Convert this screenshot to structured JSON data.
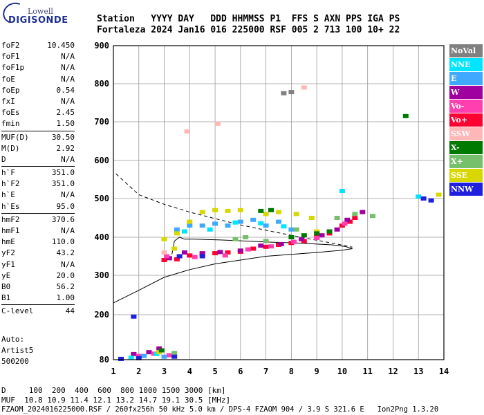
{
  "logo": {
    "lowell": "Lowell",
    "digisonde": "DIGISONDE"
  },
  "header": {
    "row1": "Station   YYYY DAY   DDD HHMMSS P1  FFS S AXN PPS IGA PS",
    "row2": "Fortaleza 2024 Jan16 016 225000 RSF 005 2 713 100 10+ 22"
  },
  "params": [
    {
      "name": "foF2",
      "value": "10.450"
    },
    {
      "name": "foF1",
      "value": "N/A"
    },
    {
      "name": "foF1p",
      "value": "N/A"
    },
    {
      "name": "foE",
      "value": "N/A"
    },
    {
      "name": "foEp",
      "value": "0.54"
    },
    {
      "name": "fxI",
      "value": "N/A"
    },
    {
      "name": "foEs",
      "value": "2.45"
    },
    {
      "name": "fmin",
      "value": "1.50"
    },
    {
      "sep": true
    },
    {
      "name": "MUF(D)",
      "value": "30.50"
    },
    {
      "name": "M(D)",
      "value": "2.92"
    },
    {
      "name": "D",
      "value": "N/A"
    },
    {
      "sep": true
    },
    {
      "name": "h`F",
      "value": "351.0"
    },
    {
      "name": "h`F2",
      "value": "351.0"
    },
    {
      "name": "h`E",
      "value": "N/A"
    },
    {
      "name": "h`Es",
      "value": "95.0"
    },
    {
      "sep": true
    },
    {
      "name": "hmF2",
      "value": "370.6"
    },
    {
      "name": "hmF1",
      "value": "N/A"
    },
    {
      "name": "hmE",
      "value": "110.0"
    },
    {
      "name": "yF2",
      "value": "43.2"
    },
    {
      "name": "yF1",
      "value": "N/A"
    },
    {
      "name": "yE",
      "value": "20.0"
    },
    {
      "name": "B0",
      "value": "56.2"
    },
    {
      "name": "B1",
      "value": "1.00"
    },
    {
      "sep": true
    },
    {
      "name": "C-level",
      "value": "44"
    }
  ],
  "autoscale": {
    "line1": "Auto:",
    "line2": "Artist5",
    "line3": "500200"
  },
  "legend": [
    {
      "label": "NoVal",
      "color": "#808080"
    },
    {
      "label": "NNE",
      "color": "#00e5ff"
    },
    {
      "label": "E",
      "color": "#3fa8ff"
    },
    {
      "label": "W",
      "color": "#a0009f"
    },
    {
      "label": "Vo-",
      "color": "#ff3fb0"
    },
    {
      "label": "Vo+",
      "color": "#ff0033"
    },
    {
      "label": "SSW",
      "color": "#ffb6b6"
    },
    {
      "label": "X-",
      "color": "#007a00"
    },
    {
      "label": "X+",
      "color": "#77c06b"
    },
    {
      "label": "SSE",
      "color": "#d8d800"
    },
    {
      "label": "NNW",
      "color": "#1f1fdf"
    }
  ],
  "footer": {
    "d_row": "D     100  200  400  600  800 1000 1500 3000 [km]",
    "muf_row": "MUF  10.8 10.9 11.4 12.1 13.2 14.7 19.1 30.5 [MHz]",
    "file_row": "FZAOM_2024016225000.RSF / 260fx256h 50 kHz 5.0 km / DPS-4 FZAOM 904 / 3.9 S 321.6 E   Ion2Png 1.3.20"
  },
  "chart_data": {
    "type": "scatter",
    "title": "",
    "xlabel": "",
    "ylabel": "",
    "x_ticks": [
      1,
      2,
      3,
      4,
      5,
      6,
      7,
      8,
      9,
      10,
      11,
      12,
      13,
      14
    ],
    "y_ticks": [
      80,
      200,
      300,
      400,
      500,
      600,
      700,
      800,
      900
    ],
    "xlim": [
      1,
      14
    ],
    "y_scale": "reciprocal-like (ionogram virtual height)",
    "y_tick_positions_note": "nonlinear",
    "grid": true,
    "series": [
      {
        "name": "Vo+",
        "color": "#ff0033",
        "points": [
          [
            3.0,
            340
          ],
          [
            3.5,
            342
          ],
          [
            4,
            352
          ],
          [
            4.5,
            356
          ],
          [
            5,
            358
          ],
          [
            5.5,
            360
          ],
          [
            6,
            362
          ],
          [
            6.5,
            370
          ],
          [
            7,
            375
          ],
          [
            7.5,
            380
          ],
          [
            8,
            385
          ],
          [
            8.5,
            390
          ],
          [
            9,
            400
          ],
          [
            9.5,
            410
          ],
          [
            10,
            430
          ],
          [
            10.3,
            440
          ],
          [
            10.5,
            450
          ]
        ]
      },
      {
        "name": "W",
        "color": "#a0009f",
        "points": [
          [
            3.2,
            345
          ],
          [
            3.8,
            360
          ],
          [
            4.5,
            358
          ],
          [
            5.2,
            361
          ],
          [
            6,
            365
          ],
          [
            6.8,
            378
          ],
          [
            7.6,
            382
          ],
          [
            8.4,
            395
          ],
          [
            9.2,
            405
          ],
          [
            9.8,
            420
          ],
          [
            10.2,
            445
          ],
          [
            10.8,
            465
          ],
          [
            1.8,
            95
          ],
          [
            2.4,
            100
          ],
          [
            2.8,
            110
          ]
        ]
      },
      {
        "name": "Vo-",
        "color": "#ff3fb0",
        "points": [
          [
            3.1,
            350
          ],
          [
            4.2,
            348
          ],
          [
            5.4,
            352
          ],
          [
            6.3,
            368
          ],
          [
            7.2,
            376
          ],
          [
            8.1,
            388
          ],
          [
            9.0,
            398
          ],
          [
            10.1,
            435
          ],
          [
            2.0,
            90
          ],
          [
            2.6,
            96
          ],
          [
            3.2,
            92
          ]
        ]
      },
      {
        "name": "E",
        "color": "#3fa8ff",
        "points": [
          [
            3.5,
            420
          ],
          [
            4,
            430
          ],
          [
            4.5,
            430
          ],
          [
            5,
            435
          ],
          [
            5.5,
            430
          ],
          [
            6,
            440
          ],
          [
            6.5,
            445
          ],
          [
            7,
            430
          ],
          [
            7.5,
            440
          ],
          [
            8,
            420
          ],
          [
            2.2,
            90
          ],
          [
            3.0,
            88
          ]
        ]
      },
      {
        "name": "NNE",
        "color": "#00e5ff",
        "points": [
          [
            3.8,
            415
          ],
          [
            4.8,
            420
          ],
          [
            5.8,
            438
          ],
          [
            6.8,
            436
          ],
          [
            7.7,
            428
          ],
          [
            10,
            520
          ],
          [
            13.0,
            505
          ],
          [
            1.7,
            85
          ],
          [
            2.7,
            95
          ]
        ]
      },
      {
        "name": "SSE",
        "color": "#d8d800",
        "points": [
          [
            3.0,
            395
          ],
          [
            3.5,
            410
          ],
          [
            4,
            440
          ],
          [
            4.5,
            465
          ],
          [
            5.0,
            470
          ],
          [
            5.5,
            468
          ],
          [
            6,
            470
          ],
          [
            7,
            460
          ],
          [
            7.5,
            465
          ],
          [
            8.2,
            460
          ],
          [
            8.8,
            450
          ],
          [
            9,
            415
          ],
          [
            3.4,
            370
          ],
          [
            2.8,
            100
          ],
          [
            13.8,
            510
          ]
        ]
      },
      {
        "name": "X-",
        "color": "#007a00",
        "points": [
          [
            8,
            400
          ],
          [
            8.5,
            405
          ],
          [
            9,
            410
          ],
          [
            9.5,
            415
          ],
          [
            7.2,
            470
          ],
          [
            6.8,
            468
          ],
          [
            12.5,
            715
          ],
          [
            2.9,
            105
          ]
        ]
      },
      {
        "name": "X+",
        "color": "#77c06b",
        "points": [
          [
            5.8,
            395
          ],
          [
            6.2,
            400
          ],
          [
            7,
            390
          ],
          [
            8.2,
            420
          ],
          [
            9.8,
            450
          ],
          [
            10.5,
            460
          ],
          [
            11.2,
            455
          ],
          [
            3.4,
            98
          ]
        ]
      },
      {
        "name": "NNW",
        "color": "#1f1fdf",
        "points": [
          [
            3.6,
            350
          ],
          [
            4.5,
            350
          ],
          [
            13.2,
            500
          ],
          [
            13.5,
            495
          ],
          [
            1.3,
            82
          ],
          [
            2.0,
            84
          ],
          [
            3.4,
            88
          ],
          [
            1.8,
            195
          ]
        ]
      },
      {
        "name": "SSW",
        "color": "#ffb6b6",
        "points": [
          [
            3.9,
            675
          ],
          [
            5.1,
            695
          ],
          [
            8.5,
            790
          ],
          [
            3.0,
            360
          ]
        ]
      },
      {
        "name": "NoVal",
        "color": "#808080",
        "points": [
          [
            7.7,
            775
          ],
          [
            8.0,
            778
          ]
        ]
      }
    ],
    "curves": [
      {
        "name": "profile-solid",
        "style": "solid",
        "points": [
          [
            1,
            230
          ],
          [
            2,
            262
          ],
          [
            3,
            295
          ],
          [
            4,
            315
          ],
          [
            5,
            330
          ],
          [
            6,
            340
          ],
          [
            7,
            350
          ],
          [
            8,
            355
          ],
          [
            9,
            360
          ],
          [
            10,
            366
          ],
          [
            10.4,
            370
          ],
          [
            10.1,
            376
          ],
          [
            9.6,
            380
          ],
          [
            9,
            382
          ],
          [
            8.2,
            385
          ],
          [
            7.2,
            387
          ],
          [
            6.2,
            390
          ],
          [
            5.2,
            393
          ],
          [
            4.2,
            395
          ],
          [
            3.8,
            395
          ],
          [
            3.6,
            400
          ],
          [
            3.4,
            390
          ],
          [
            3.3,
            355
          ]
        ]
      },
      {
        "name": "profile-dashed",
        "style": "dashed",
        "points": [
          [
            1.1,
            565
          ],
          [
            2,
            510
          ],
          [
            3,
            485
          ],
          [
            4,
            465
          ],
          [
            5,
            448
          ],
          [
            6,
            432
          ],
          [
            7,
            418
          ],
          [
            8,
            405
          ],
          [
            9,
            392
          ],
          [
            9.8,
            382
          ],
          [
            10.4,
            374
          ]
        ]
      }
    ]
  }
}
